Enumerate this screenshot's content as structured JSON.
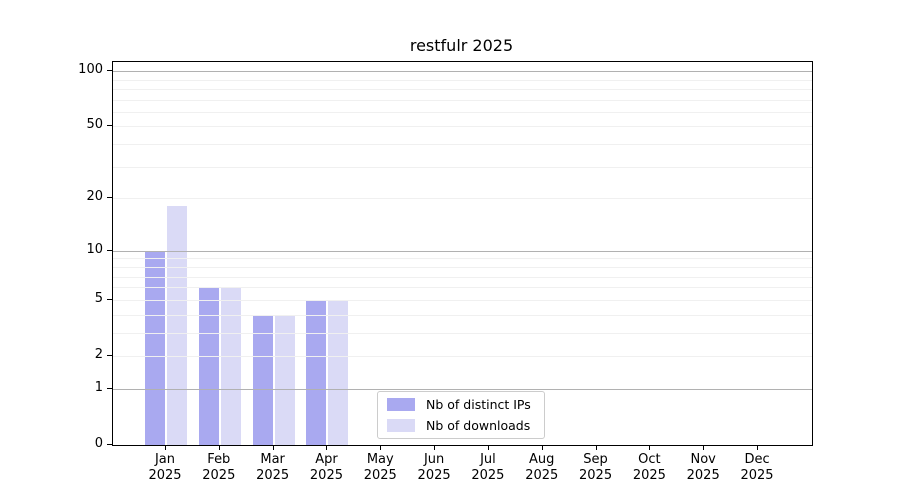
{
  "title": "restfulr 2025",
  "chart_data": {
    "type": "bar",
    "title": "restfulr 2025",
    "categories": [
      "Jan",
      "Feb",
      "Mar",
      "Apr",
      "May",
      "Jun",
      "Jul",
      "Aug",
      "Sep",
      "Oct",
      "Nov",
      "Dec"
    ],
    "category_line2": "2025",
    "series": [
      {
        "name": "Nb of distinct IPs",
        "color": "#a9a9f0",
        "values": [
          10,
          6,
          4,
          5,
          0,
          0,
          0,
          0,
          0,
          0,
          0,
          0
        ]
      },
      {
        "name": "Nb of downloads",
        "color": "#dadaf6",
        "values": [
          18,
          6,
          4,
          5,
          0,
          0,
          0,
          0,
          0,
          0,
          0,
          0
        ]
      }
    ],
    "xlabel": "",
    "ylabel": "",
    "y_scale": "log10(1+x)",
    "ylim": [
      0,
      112
    ],
    "y_ticks": [
      0,
      1,
      2,
      5,
      10,
      20,
      50,
      100
    ],
    "gridlines": {
      "major": [
        1,
        10,
        100
      ],
      "minor": [
        2,
        3,
        4,
        5,
        6,
        7,
        8,
        9,
        20,
        30,
        40,
        50,
        60,
        70,
        80,
        90
      ]
    },
    "legend_position": "inside bottom, left of center"
  },
  "colors": {
    "bar_distinct_ips": "#a9a9f0",
    "bar_downloads": "#dadaf6",
    "grid_major": "#b1b1b1",
    "grid_minor": "#f0f0f0",
    "spine": "#000000",
    "text": "#000000",
    "legend_border": "#cccccc"
  }
}
